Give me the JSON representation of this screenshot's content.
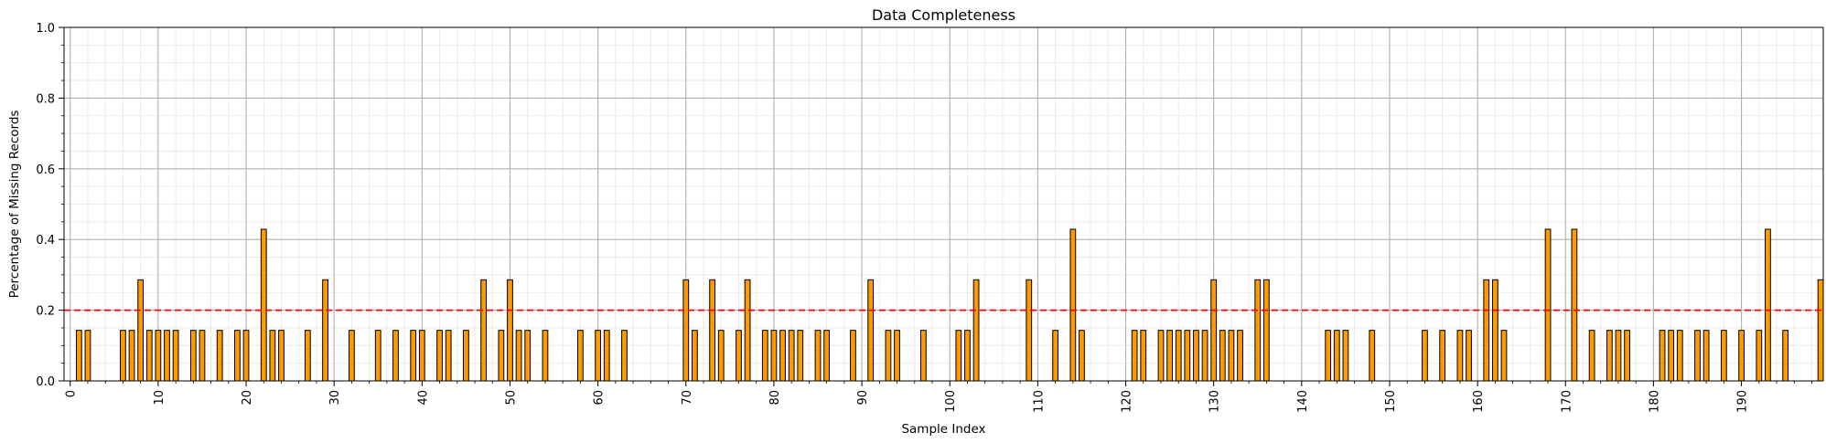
{
  "chart_data": {
    "type": "bar",
    "title": "Data Completeness",
    "xlabel": "Sample Index",
    "ylabel": "Percentage of Missing Records",
    "xlim": [
      -0.7,
      199.3
    ],
    "ylim": [
      0,
      1.0
    ],
    "xticks": [
      0,
      10,
      20,
      30,
      40,
      50,
      60,
      70,
      80,
      90,
      100,
      110,
      120,
      130,
      140,
      150,
      160,
      170,
      180,
      190
    ],
    "yticks": [
      "0.0",
      "0.2",
      "0.4",
      "0.6",
      "0.8",
      "1.0"
    ],
    "grid": true,
    "minor_grid": true,
    "bar_color": "#ff9900",
    "bar_edge_color": "#000000",
    "threshold": {
      "value": 0.2,
      "color": "#ff0000",
      "style": "dashed"
    },
    "x": [
      1,
      2,
      6,
      7,
      8,
      9,
      10,
      11,
      12,
      14,
      15,
      17,
      19,
      20,
      22,
      23,
      24,
      27,
      29,
      32,
      35,
      37,
      39,
      40,
      42,
      43,
      45,
      47,
      49,
      50,
      51,
      52,
      54,
      58,
      60,
      61,
      63,
      70,
      71,
      73,
      74,
      76,
      77,
      79,
      80,
      81,
      82,
      83,
      85,
      86,
      89,
      91,
      93,
      94,
      97,
      101,
      102,
      103,
      109,
      112,
      114,
      115,
      121,
      122,
      124,
      125,
      126,
      127,
      128,
      129,
      130,
      131,
      132,
      133,
      135,
      136,
      143,
      144,
      145,
      148,
      154,
      156,
      158,
      159,
      161,
      162,
      163,
      168,
      171,
      173,
      175,
      176,
      177,
      181,
      182,
      183,
      185,
      186,
      188,
      190,
      192,
      193,
      195,
      199
    ],
    "values": [
      0.143,
      0.143,
      0.143,
      0.143,
      0.286,
      0.143,
      0.143,
      0.143,
      0.143,
      0.143,
      0.143,
      0.143,
      0.143,
      0.143,
      0.429,
      0.143,
      0.143,
      0.143,
      0.286,
      0.143,
      0.143,
      0.143,
      0.143,
      0.143,
      0.143,
      0.143,
      0.143,
      0.286,
      0.143,
      0.286,
      0.143,
      0.143,
      0.143,
      0.143,
      0.143,
      0.143,
      0.143,
      0.286,
      0.143,
      0.286,
      0.143,
      0.143,
      0.286,
      0.143,
      0.143,
      0.143,
      0.143,
      0.143,
      0.143,
      0.143,
      0.143,
      0.286,
      0.143,
      0.143,
      0.143,
      0.143,
      0.143,
      0.286,
      0.286,
      0.143,
      0.429,
      0.143,
      0.143,
      0.143,
      0.143,
      0.143,
      0.143,
      0.143,
      0.143,
      0.143,
      0.286,
      0.143,
      0.143,
      0.143,
      0.286,
      0.286,
      0.143,
      0.143,
      0.143,
      0.143,
      0.143,
      0.143,
      0.143,
      0.143,
      0.286,
      0.286,
      0.143,
      0.429,
      0.429,
      0.143,
      0.143,
      0.143,
      0.143,
      0.143,
      0.143,
      0.143,
      0.143,
      0.143,
      0.143,
      0.143,
      0.143,
      0.429,
      0.143,
      0.286
    ]
  }
}
